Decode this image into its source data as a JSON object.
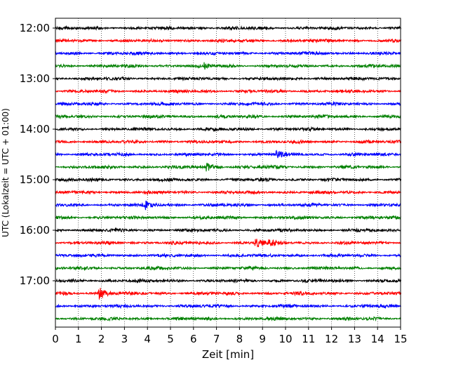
{
  "chart_data": {
    "type": "line",
    "title": "",
    "xlabel": "Zeit  [min]",
    "ylabel": "UTC (Lokalzeit = UTC + 01:00)",
    "xlim": [
      0,
      15
    ],
    "x_ticks": [
      "0",
      "1",
      "2",
      "3",
      "4",
      "5",
      "6",
      "7",
      "8",
      "9",
      "10",
      "11",
      "12",
      "13",
      "14",
      "15"
    ],
    "y_ticks": [
      "12:00",
      "13:00",
      "14:00",
      "15:00",
      "16:00",
      "17:00"
    ],
    "grid": "vertical dotted",
    "trace_colors": [
      "#000000",
      "#ff0000",
      "#0000ff",
      "#008000"
    ],
    "trace_start_times": [
      "12:00",
      "12:15",
      "12:30",
      "12:45",
      "13:00",
      "13:15",
      "13:30",
      "13:45",
      "14:00",
      "14:15",
      "14:30",
      "14:45",
      "15:00",
      "15:15",
      "15:30",
      "15:45",
      "16:00",
      "16:15",
      "16:30",
      "16:45",
      "17:00",
      "17:15",
      "17:30",
      "17:45"
    ],
    "events": [
      {
        "trace": "15:30",
        "minute": 3.9,
        "amplitude": 2.2
      },
      {
        "trace": "16:15",
        "minute": 8.7,
        "amplitude": 3.2
      },
      {
        "trace": "16:15",
        "minute": 9.3,
        "amplitude": 1.8
      },
      {
        "trace": "17:15",
        "minute": 1.9,
        "amplitude": 3.6
      },
      {
        "trace": "14:45",
        "minute": 6.6,
        "amplitude": 2.0
      },
      {
        "trace": "14:30",
        "minute": 9.6,
        "amplitude": 2.0
      },
      {
        "trace": "12:45",
        "minute": 6.5,
        "amplitude": 1.5
      }
    ]
  }
}
